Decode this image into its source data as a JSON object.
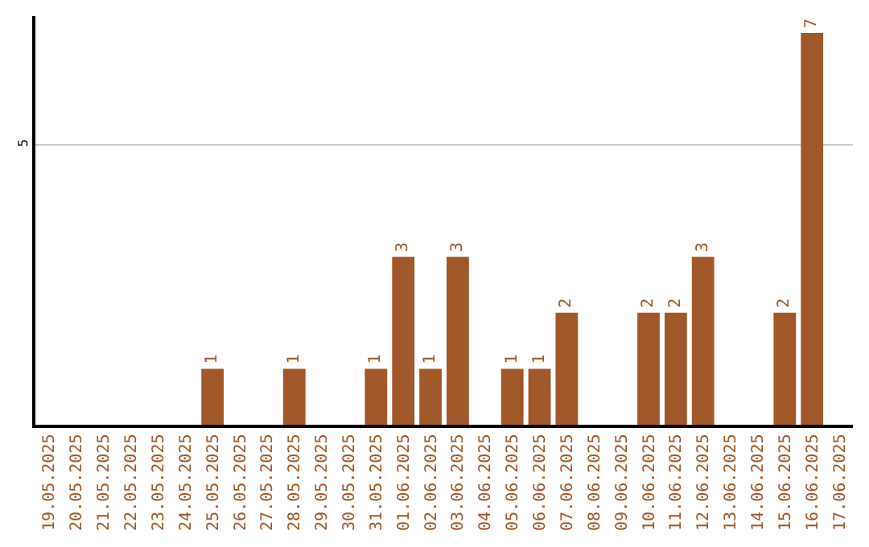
{
  "chart_data": {
    "type": "bar",
    "categories": [
      "19.05.2025",
      "20.05.2025",
      "21.05.2025",
      "22.05.2025",
      "23.05.2025",
      "24.05.2025",
      "25.05.2025",
      "26.05.2025",
      "27.05.2025",
      "28.05.2025",
      "29.05.2025",
      "30.05.2025",
      "31.05.2025",
      "01.06.2025",
      "02.06.2025",
      "03.06.2025",
      "04.06.2025",
      "05.06.2025",
      "06.06.2025",
      "07.06.2025",
      "08.06.2025",
      "09.06.2025",
      "10.06.2025",
      "11.06.2025",
      "12.06.2025",
      "13.06.2025",
      "14.06.2025",
      "15.06.2025",
      "16.06.2025",
      "17.06.2025"
    ],
    "values": [
      0,
      0,
      0,
      0,
      0,
      0,
      1,
      0,
      0,
      1,
      0,
      0,
      1,
      3,
      1,
      3,
      0,
      1,
      1,
      2,
      0,
      0,
      2,
      2,
      3,
      0,
      0,
      2,
      7,
      0
    ],
    "value_labels": [
      null,
      null,
      null,
      null,
      null,
      null,
      "1",
      null,
      null,
      "1",
      null,
      null,
      "1",
      "3",
      "1",
      "3",
      null,
      "1",
      "1",
      "2",
      null,
      null,
      "2",
      "2",
      "3",
      null,
      null,
      "2",
      "7",
      null
    ],
    "color": "#a0572a",
    "ylim": [
      0,
      7.3
    ],
    "yticks": [
      5
    ],
    "grid": "y"
  }
}
